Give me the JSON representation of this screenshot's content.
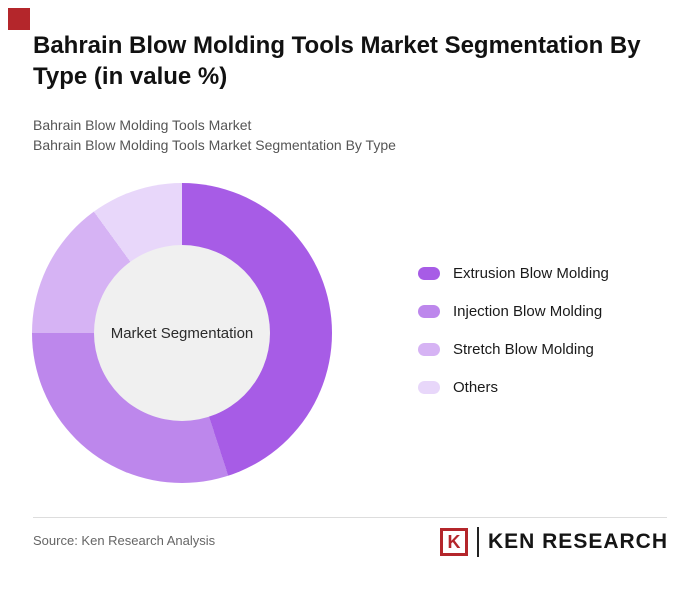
{
  "header": {
    "title": "Bahrain Blow Molding Tools Market Segmentation By Type (in value %)",
    "subtitle_line1": "Bahrain Blow Molding Tools Market",
    "subtitle_line2": "Bahrain Blow Molding Tools Market Segmentation By Type"
  },
  "chart_data": {
    "type": "pie",
    "variant": "donut",
    "title": "Bahrain Blow Molding Tools Market Segmentation By Type (in value %)",
    "center_label": "Market Segmentation",
    "start_angle_deg": 0,
    "direction": "clockwise",
    "legend_position": "right",
    "segments": [
      {
        "label": "Extrusion Blow Molding",
        "value": 45,
        "color": "#a75ce6"
      },
      {
        "label": "Injection Blow Molding",
        "value": 30,
        "color": "#bd87ec"
      },
      {
        "label": "Stretch Blow Molding",
        "value": 15,
        "color": "#d6b3f4"
      },
      {
        "label": "Others",
        "value": 10,
        "color": "#e8d7fa"
      }
    ]
  },
  "footer": {
    "source": "Source: Ken Research Analysis",
    "logo_letter": "K",
    "logo_text": "KEN RESEARCH"
  },
  "colors": {
    "brand-red": "#b4262b",
    "divider": "#dddddd",
    "donut-hole": "#f0f0f0",
    "text-dark": "#111111",
    "text-muted": "#555555"
  }
}
